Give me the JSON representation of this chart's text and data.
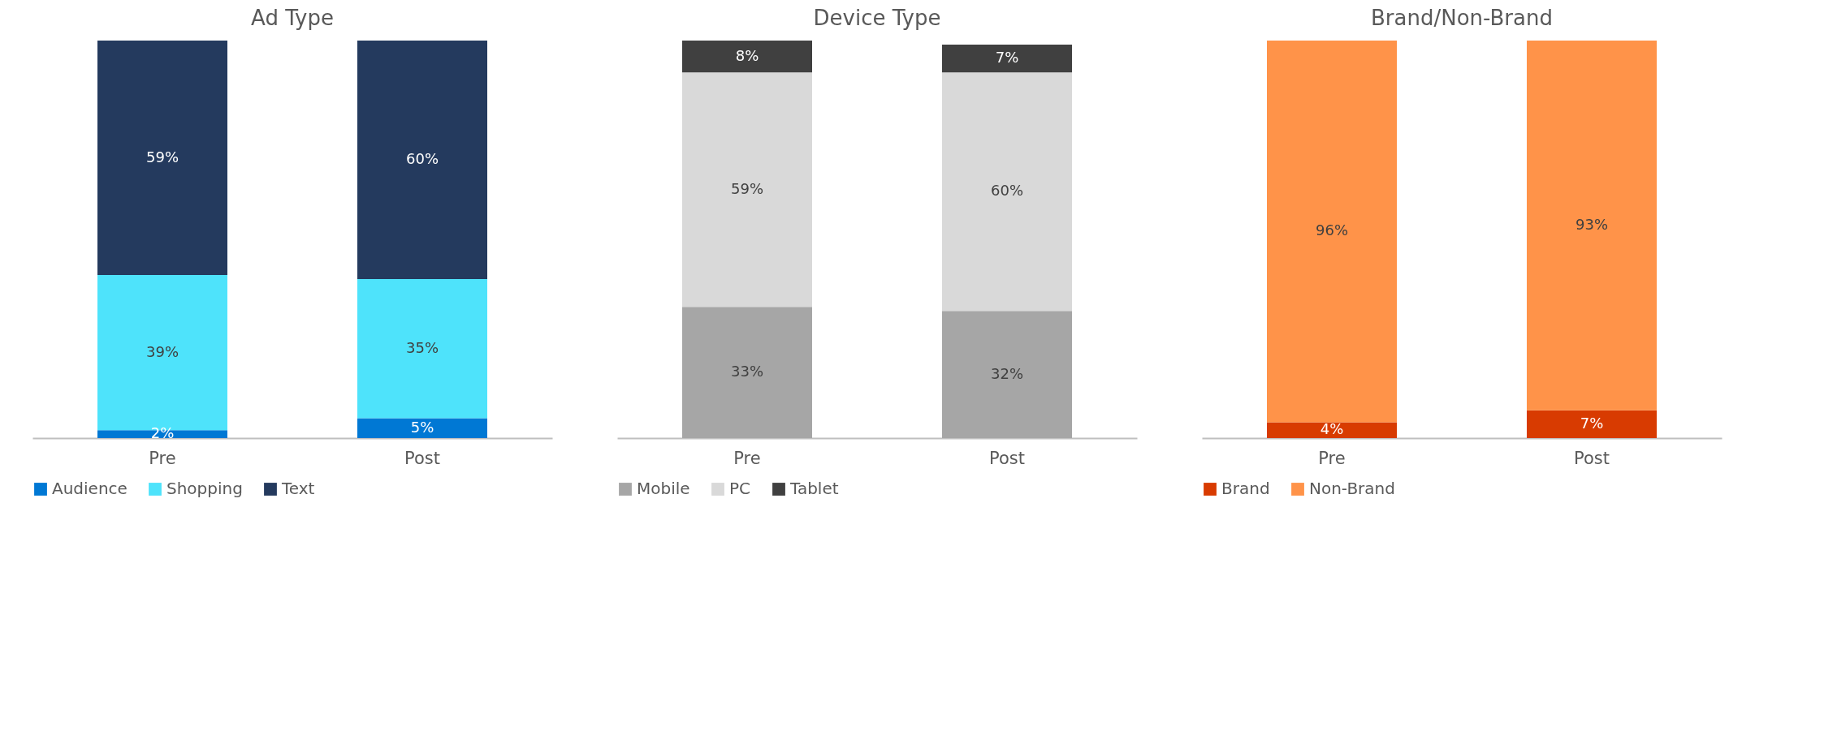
{
  "chart_data": [
    {
      "type": "bar",
      "title": "Ad Type",
      "categories": [
        "Pre",
        "Post"
      ],
      "stacked": true,
      "ylim": [
        0,
        100
      ],
      "tick_labels": "x",
      "grid": false,
      "legend": "bottom",
      "series": [
        {
          "name": "Audience",
          "color": "#0078d4",
          "values": [
            2,
            5
          ],
          "value_labels": [
            "2%",
            "5%"
          ]
        },
        {
          "name": "Shopping",
          "color": "#4ee3fb",
          "values": [
            39,
            35
          ],
          "value_labels": [
            "39%",
            "35%"
          ]
        },
        {
          "name": "Text",
          "color": "#243a5e",
          "values": [
            59,
            60
          ],
          "value_labels": [
            "59%",
            "60%"
          ]
        }
      ]
    },
    {
      "type": "bar",
      "title": "Device Type",
      "categories": [
        "Pre",
        "Post"
      ],
      "stacked": true,
      "ylim": [
        0,
        100
      ],
      "tick_labels": "x",
      "grid": false,
      "legend": "bottom",
      "series": [
        {
          "name": "Mobile",
          "color": "#a6a6a6",
          "values": [
            33,
            32
          ],
          "value_labels": [
            "33%",
            "32%"
          ]
        },
        {
          "name": "PC",
          "color": "#d9d9d9",
          "values": [
            59,
            60
          ],
          "value_labels": [
            "59%",
            "60%"
          ]
        },
        {
          "name": "Tablet",
          "color": "#404040",
          "values": [
            8,
            7
          ],
          "value_labels": [
            "8%",
            "7%"
          ]
        }
      ]
    },
    {
      "type": "bar",
      "title": "Brand/Non-Brand",
      "categories": [
        "Pre",
        "Post"
      ],
      "stacked": true,
      "ylim": [
        0,
        100
      ],
      "tick_labels": "x",
      "grid": false,
      "legend": "bottom",
      "series": [
        {
          "name": "Brand",
          "color": "#d83b01",
          "values": [
            4,
            7
          ],
          "value_labels": [
            "4%",
            "7%"
          ]
        },
        {
          "name": "Non-Brand",
          "color": "#ff9349",
          "values": [
            96,
            93
          ],
          "value_labels": [
            "96%",
            "93%"
          ]
        }
      ]
    }
  ]
}
